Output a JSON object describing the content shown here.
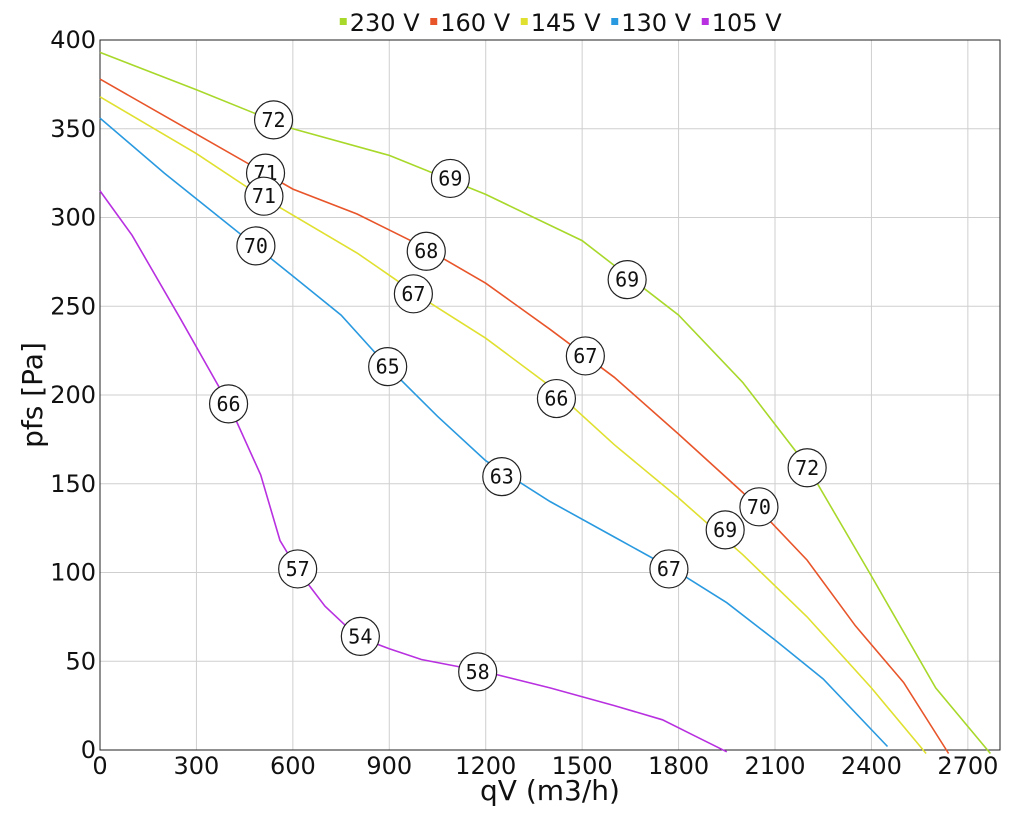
{
  "chart_data": {
    "type": "line",
    "xlabel": "qV (m3/h)",
    "ylabel": "pfs [Pa]",
    "xlim": [
      0,
      2800
    ],
    "ylim": [
      0,
      400
    ],
    "xticks": [
      0,
      300,
      600,
      900,
      1200,
      1500,
      1800,
      2100,
      2400,
      2700
    ],
    "yticks": [
      0,
      50,
      100,
      150,
      200,
      250,
      300,
      350,
      400
    ],
    "grid": true,
    "legend_position": "top",
    "series": [
      {
        "name": "230 V",
        "color": "#a8d82a",
        "points": [
          [
            0,
            393
          ],
          [
            300,
            372
          ],
          [
            600,
            350
          ],
          [
            900,
            335
          ],
          [
            1200,
            313
          ],
          [
            1500,
            287
          ],
          [
            1800,
            245
          ],
          [
            2000,
            207
          ],
          [
            2200,
            160
          ],
          [
            2400,
            98
          ],
          [
            2600,
            35
          ],
          [
            2770,
            -2
          ]
        ],
        "markers": [
          {
            "x": 540,
            "y": 355,
            "label": "72"
          },
          {
            "x": 1090,
            "y": 322,
            "label": "69"
          },
          {
            "x": 1640,
            "y": 265,
            "label": "69"
          },
          {
            "x": 2200,
            "y": 159,
            "label": "72"
          }
        ]
      },
      {
        "name": "160 V",
        "color": "#e8552a",
        "points": [
          [
            0,
            378
          ],
          [
            300,
            347
          ],
          [
            600,
            316
          ],
          [
            800,
            302
          ],
          [
            1000,
            284
          ],
          [
            1200,
            263
          ],
          [
            1400,
            237
          ],
          [
            1600,
            210
          ],
          [
            1800,
            178
          ],
          [
            2000,
            145
          ],
          [
            2200,
            107
          ],
          [
            2350,
            70
          ],
          [
            2500,
            38
          ],
          [
            2640,
            -2
          ]
        ],
        "markers": [
          {
            "x": 515,
            "y": 325,
            "label": "71"
          },
          {
            "x": 1015,
            "y": 281,
            "label": "68"
          },
          {
            "x": 1510,
            "y": 222,
            "label": "67"
          },
          {
            "x": 2050,
            "y": 137,
            "label": "70"
          }
        ]
      },
      {
        "name": "145 V",
        "color": "#e0e030",
        "points": [
          [
            0,
            368
          ],
          [
            300,
            336
          ],
          [
            500,
            312
          ],
          [
            800,
            280
          ],
          [
            1000,
            255
          ],
          [
            1200,
            232
          ],
          [
            1400,
            205
          ],
          [
            1600,
            172
          ],
          [
            1800,
            142
          ],
          [
            2000,
            110
          ],
          [
            2200,
            75
          ],
          [
            2400,
            35
          ],
          [
            2570,
            -2
          ]
        ],
        "markers": [
          {
            "x": 510,
            "y": 312,
            "label": "71"
          },
          {
            "x": 975,
            "y": 257,
            "label": "67"
          },
          {
            "x": 1420,
            "y": 198,
            "label": "66"
          },
          {
            "x": 1945,
            "y": 124,
            "label": "69"
          }
        ]
      },
      {
        "name": "130 V",
        "color": "#2a9ae0",
        "points": [
          [
            0,
            356
          ],
          [
            200,
            325
          ],
          [
            400,
            296
          ],
          [
            600,
            267
          ],
          [
            750,
            245
          ],
          [
            900,
            215
          ],
          [
            1050,
            188
          ],
          [
            1200,
            163
          ],
          [
            1400,
            140
          ],
          [
            1600,
            120
          ],
          [
            1800,
            100
          ],
          [
            1950,
            83
          ],
          [
            2100,
            62
          ],
          [
            2250,
            40
          ],
          [
            2450,
            2
          ]
        ],
        "markers": [
          {
            "x": 485,
            "y": 284,
            "label": "70"
          },
          {
            "x": 895,
            "y": 216,
            "label": "65"
          },
          {
            "x": 1250,
            "y": 154,
            "label": "63"
          },
          {
            "x": 1770,
            "y": 102,
            "label": "67"
          }
        ]
      },
      {
        "name": "105 V",
        "color": "#b830e0",
        "points": [
          [
            0,
            315
          ],
          [
            100,
            290
          ],
          [
            250,
            243
          ],
          [
            400,
            195
          ],
          [
            500,
            155
          ],
          [
            560,
            118
          ],
          [
            620,
            100
          ],
          [
            700,
            81
          ],
          [
            800,
            64
          ],
          [
            900,
            57
          ],
          [
            1000,
            51
          ],
          [
            1200,
            44
          ],
          [
            1400,
            35
          ],
          [
            1600,
            25
          ],
          [
            1750,
            17
          ],
          [
            1850,
            8
          ],
          [
            1950,
            -1
          ]
        ],
        "markers": [
          {
            "x": 400,
            "y": 195,
            "label": "66"
          },
          {
            "x": 615,
            "y": 102,
            "label": "57"
          },
          {
            "x": 810,
            "y": 64,
            "label": "54"
          },
          {
            "x": 1175,
            "y": 44,
            "label": "58"
          }
        ]
      }
    ]
  }
}
